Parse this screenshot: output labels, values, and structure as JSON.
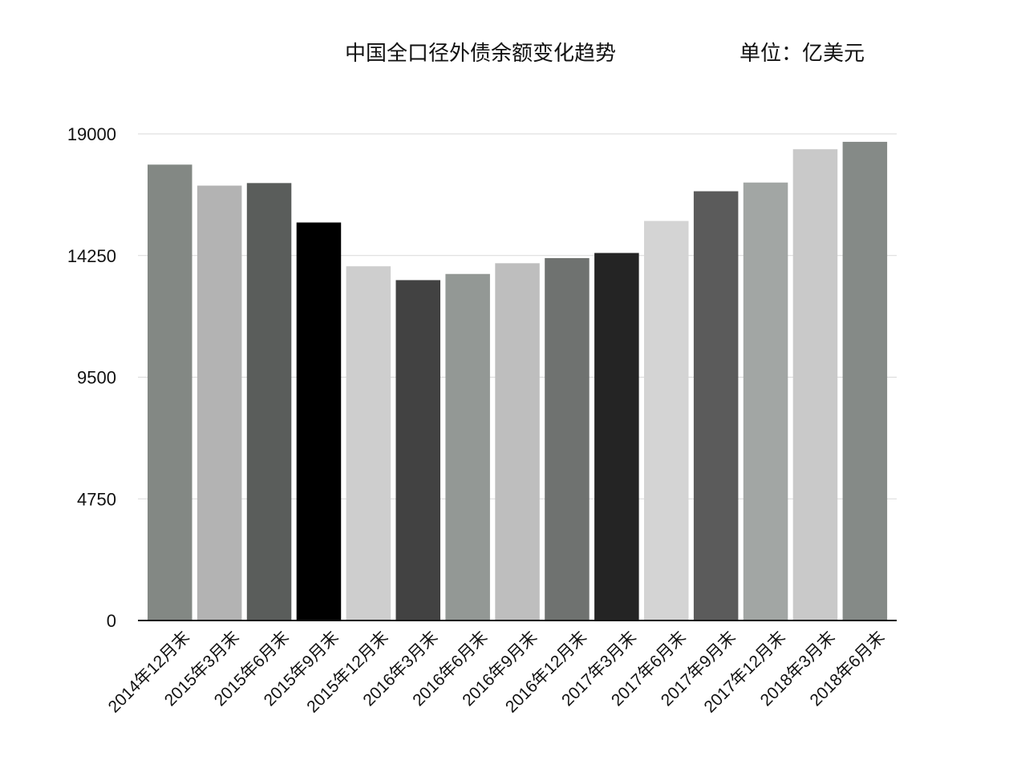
{
  "chart_data": {
    "type": "bar",
    "title": "中国全口径外债余额变化趋势",
    "unit": "单位：亿美元",
    "categories": [
      "2014年12月末",
      "2015年3月末",
      "2015年6月末",
      "2015年9月末",
      "2015年12月末",
      "2016年3月末",
      "2016年6月末",
      "2016年9月末",
      "2016年12月末",
      "2017年3月末",
      "2017年6月末",
      "2017年9月末",
      "2017年12月末",
      "2018年3月末",
      "2018年6月末"
    ],
    "values": [
      17800,
      16980,
      17080,
      15540,
      13830,
      13290,
      13530,
      13950,
      14150,
      14350,
      15600,
      16760,
      17100,
      18400,
      18690
    ],
    "colors": [
      "#838884",
      "#b3b3b3",
      "#5a5d5b",
      "#000000",
      "#cecece",
      "#424242",
      "#939895",
      "#bebebe",
      "#6f7270",
      "#242424",
      "#d4d4d4",
      "#5b5b5b",
      "#a2a6a4",
      "#c9c9c9",
      "#858a87"
    ],
    "yticks": [
      "0",
      "4750",
      "9500",
      "14250",
      "19000"
    ],
    "ylim": [
      0,
      19000
    ],
    "xlabel": "",
    "ylabel": "",
    "grid": true,
    "legend": "none"
  }
}
